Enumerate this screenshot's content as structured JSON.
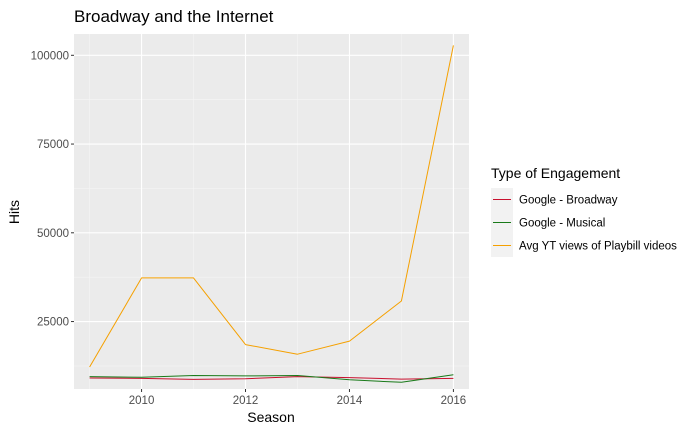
{
  "chart_data": {
    "type": "line",
    "title": "Broadway and the Internet",
    "xlabel": "Season",
    "ylabel": "Hits",
    "x": [
      2009,
      2010,
      2011,
      2012,
      2013,
      2014,
      2015,
      2016
    ],
    "xlim": [
      2008.7,
      2016.3
    ],
    "ylim": [
      6000,
      106000
    ],
    "x_ticks": [
      2010,
      2012,
      2014,
      2016
    ],
    "y_ticks": [
      25000,
      50000,
      75000,
      100000
    ],
    "grid": true,
    "legend_position": "right",
    "legend_title": "Type of Engagement",
    "series": [
      {
        "name": "Google - Broadway",
        "color": "#c8102e",
        "values": [
          9100,
          9000,
          8700,
          8900,
          9500,
          9200,
          8800,
          9000
        ]
      },
      {
        "name": "Google - Musical",
        "color": "#1a7a1a",
        "values": [
          9500,
          9300,
          9800,
          9700,
          9800,
          8600,
          7900,
          10000
        ]
      },
      {
        "name": "Avg YT views of Playbill videos",
        "color": "#f5a000",
        "values": [
          12200,
          37300,
          37300,
          18500,
          15800,
          19500,
          30800,
          102800
        ]
      }
    ]
  }
}
